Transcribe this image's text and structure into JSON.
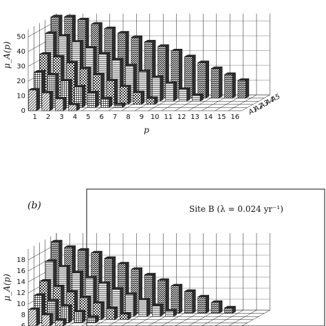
{
  "chart_data": [
    {
      "type": "bar",
      "title": "",
      "ylabel": "μ_A(p)",
      "xlabel": "p",
      "x_ticks": [
        "1",
        "2",
        "3",
        "4",
        "5",
        "6",
        "7",
        "8",
        "9",
        "10",
        "11",
        "12",
        "13",
        "14",
        "15",
        "16"
      ],
      "y_ticks": [
        "0",
        "10",
        "20",
        "30",
        "40",
        "50"
      ],
      "series_ticks": [
        "A5",
        "A4",
        "A3",
        "A2",
        "A1"
      ],
      "ylim": [
        0,
        55
      ],
      "grid": true,
      "series": [
        {
          "values": [
            14,
            12,
            8,
            4,
            0,
            0,
            0,
            0,
            0,
            0,
            0,
            0,
            0,
            0,
            0,
            0
          ]
        },
        {
          "values": [
            24,
            22,
            18,
            14,
            10,
            6,
            2,
            0,
            0,
            0,
            0,
            0,
            0,
            0,
            0,
            0
          ]
        },
        {
          "values": [
            34,
            32,
            28,
            24,
            20,
            16,
            12,
            8,
            4,
            0,
            0,
            0,
            0,
            0,
            0,
            0
          ]
        },
        {
          "values": [
            46,
            44,
            40,
            36,
            32,
            28,
            24,
            20,
            16,
            12,
            8,
            4,
            0,
            0,
            0,
            0
          ]
        },
        {
          "values": [
            55,
            55,
            53,
            50,
            47,
            44,
            41,
            38,
            35,
            32,
            28,
            24,
            20,
            16,
            12,
            0
          ]
        }
      ]
    },
    {
      "type": "bar",
      "panel_label": "(b)",
      "site_label": "Site B (λ = 0.024 yr⁻¹)",
      "ylabel": "μ_A(p)",
      "y_ticks": [
        "6",
        "8",
        "10",
        "12",
        "14",
        "16",
        "18"
      ],
      "ylim": [
        6,
        20
      ],
      "grid": true,
      "series": [
        {
          "values": [
            9,
            8,
            7,
            6,
            6,
            6,
            6,
            6,
            6,
            6,
            6,
            6,
            6,
            6,
            6,
            6
          ]
        },
        {
          "values": [
            11,
            10,
            9,
            8,
            7,
            6,
            6,
            6,
            6,
            6,
            6,
            6,
            6,
            6,
            6,
            6
          ]
        },
        {
          "values": [
            13,
            12,
            11,
            10,
            9,
            8,
            7,
            6,
            6,
            6,
            6,
            6,
            6,
            6,
            6,
            6
          ]
        },
        {
          "values": [
            16,
            15,
            14,
            13,
            12,
            11,
            10,
            9,
            8,
            7,
            6,
            6,
            6,
            6,
            6,
            6
          ]
        },
        {
          "values": [
            19,
            18,
            17.5,
            17,
            16,
            15,
            14,
            13,
            12,
            11,
            10,
            9,
            8,
            7,
            6,
            6
          ]
        }
      ]
    }
  ],
  "colors": {
    "dark": "#2e2e2e",
    "light": "#cfcfcf",
    "line": "#111111"
  }
}
